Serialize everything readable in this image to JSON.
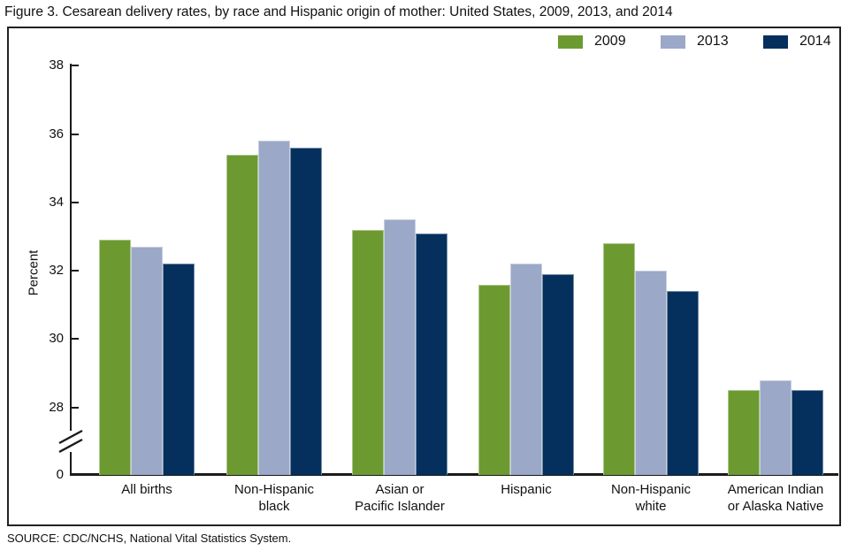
{
  "title": "Figure 3. Cesarean delivery rates, by race and Hispanic origin of mother: United States, 2009, 2013, and 2014",
  "source": "SOURCE: CDC/NCHS, National Vital Statistics System.",
  "legend": [
    {
      "label": "2009",
      "color": "#6C9A31"
    },
    {
      "label": "2013",
      "color": "#9BA8C7"
    },
    {
      "label": "2014",
      "color": "#05305E"
    }
  ],
  "chart_data": {
    "type": "bar",
    "title": "Cesarean delivery rates, by race and Hispanic origin of mother: United States, 2009, 2013, and 2014",
    "xlabel": "",
    "ylabel": "Percent",
    "categories": [
      "All births",
      "Non-Hispanic black",
      "Asian or Pacific Islander",
      "Hispanic",
      "Non-Hispanic white",
      "American Indian or Alaska Native"
    ],
    "categories_display": [
      "All births",
      "Non-Hispanic\nblack",
      "Asian  or\nPacific Islander",
      "Hispanic",
      "Non-Hispanic\nwhite",
      "American Indian\nor Alaska Native"
    ],
    "series": [
      {
        "name": "2009",
        "color": "#6C9A31",
        "values": [
          32.9,
          35.4,
          33.2,
          31.6,
          32.8,
          28.5
        ]
      },
      {
        "name": "2013",
        "color": "#9BA8C7",
        "values": [
          32.7,
          35.8,
          33.5,
          32.2,
          32.0,
          28.8
        ]
      },
      {
        "name": "2014",
        "color": "#05305E",
        "values": [
          32.2,
          35.6,
          33.1,
          31.9,
          31.4,
          28.5
        ]
      }
    ],
    "y_ticks": [
      0,
      28,
      30,
      32,
      34,
      36,
      38
    ],
    "ylim": [
      0,
      38
    ],
    "axis_break": true,
    "axis_break_between": [
      0,
      28
    ],
    "grid": false,
    "legend_position": "top-right"
  }
}
